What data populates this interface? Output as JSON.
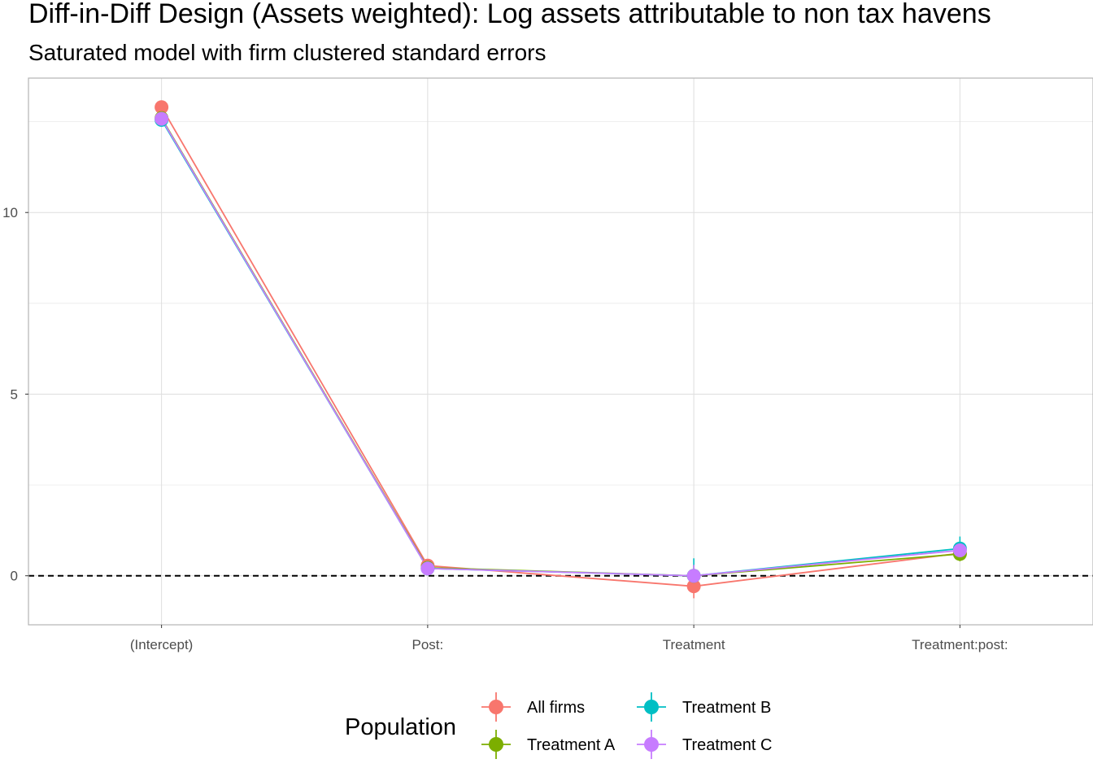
{
  "chart_data": {
    "type": "line",
    "title": "Diff-in-Diff Design (Assets weighted): Log assets attributable to non tax havens",
    "subtitle": "Saturated model with firm clustered standard errors",
    "xlabel": "",
    "ylabel": "",
    "categories": [
      "(Intercept)",
      "Post:",
      "Treatment",
      "Treatment:post:"
    ],
    "y_ticks": [
      0,
      5,
      10
    ],
    "ylim": [
      -1.35,
      13.7
    ],
    "grid": true,
    "reference_line": {
      "y": 0,
      "style": "dashed",
      "color": "#000000"
    },
    "legend": {
      "title": "Population",
      "placement": "bottom"
    },
    "series": [
      {
        "name": "All firms",
        "color": "#F8766D",
        "values": [
          12.9,
          0.28,
          -0.29,
          0.62
        ],
        "ci_low": [
          12.85,
          0.24,
          -0.62,
          0.52
        ],
        "ci_high": [
          12.95,
          0.32,
          0.04,
          0.72
        ]
      },
      {
        "name": "Treatment A",
        "color": "#7CAE00",
        "values": [
          12.6,
          0.22,
          0.0,
          0.6
        ],
        "ci_low": [
          12.55,
          0.18,
          -0.3,
          0.4
        ],
        "ci_high": [
          12.65,
          0.26,
          0.3,
          0.8
        ]
      },
      {
        "name": "Treatment B",
        "color": "#00BFC4",
        "values": [
          12.55,
          0.2,
          0.0,
          0.75
        ],
        "ci_low": [
          12.5,
          0.16,
          -0.3,
          0.5
        ],
        "ci_high": [
          12.6,
          0.24,
          0.48,
          1.08
        ]
      },
      {
        "name": "Treatment C",
        "color": "#C77CFF",
        "values": [
          12.58,
          0.2,
          0.0,
          0.7
        ],
        "ci_low": [
          12.53,
          0.16,
          -0.3,
          0.48
        ],
        "ci_high": [
          12.63,
          0.24,
          0.3,
          0.92
        ]
      }
    ]
  }
}
